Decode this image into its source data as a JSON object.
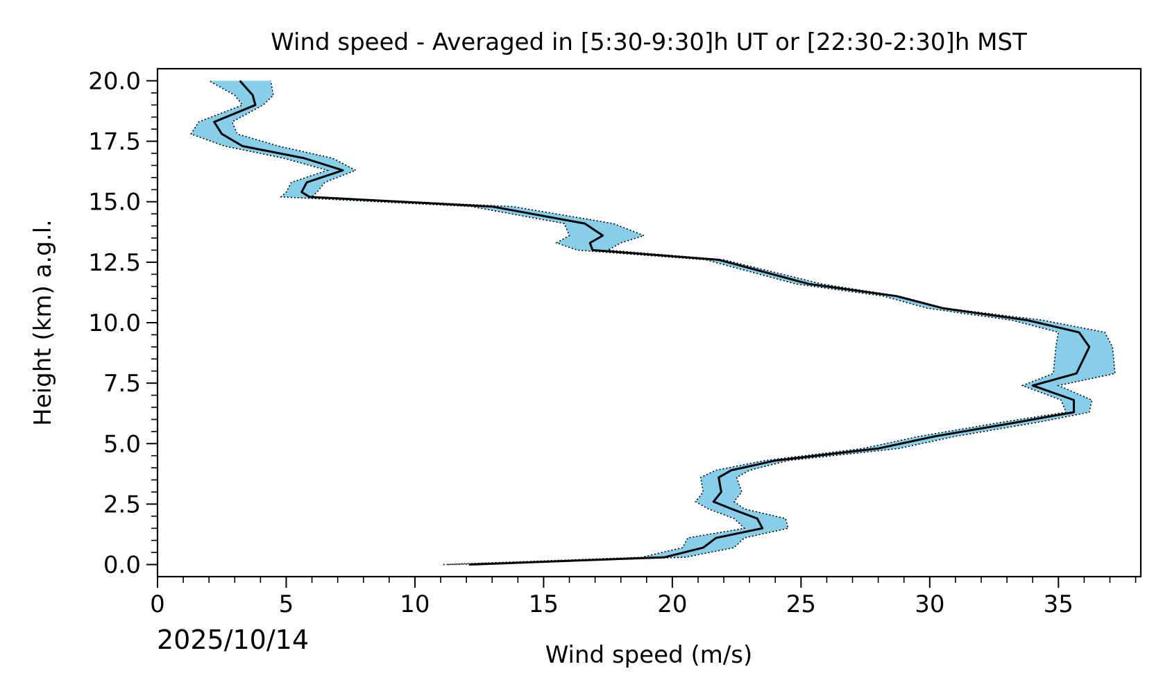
{
  "chart_data": {
    "type": "line",
    "title": "Wind speed - Averaged in [5:30-9:30]h UT or [22:30-2:30]h MST",
    "xlabel": "Wind speed (m/s)",
    "ylabel": "Height (km) a.g.l.",
    "xlim": [
      0,
      38.2
    ],
    "ylim": [
      -0.5,
      20.5
    ],
    "x_ticks": [
      0,
      5,
      10,
      15,
      20,
      25,
      30,
      35
    ],
    "x_tick_labels": [
      "0",
      "5",
      "10",
      "15",
      "20",
      "25",
      "30",
      "35"
    ],
    "y_ticks": [
      0,
      2.5,
      5,
      7.5,
      10,
      12.5,
      15,
      17.5,
      20
    ],
    "y_tick_labels": [
      "0.0",
      "2.5",
      "5.0",
      "7.5",
      "10.0",
      "12.5",
      "15.0",
      "17.5",
      "20.0"
    ],
    "grid": false,
    "date": "2025/10/14",
    "line_color": "#000000",
    "band_color": "#87ceeb",
    "series": [
      {
        "name": "mean",
        "points": [
          [
            12.1,
            0.0
          ],
          [
            19.7,
            0.3
          ],
          [
            21.2,
            0.7
          ],
          [
            21.7,
            1.1
          ],
          [
            23.5,
            1.5
          ],
          [
            23.3,
            1.9
          ],
          [
            22.3,
            2.3
          ],
          [
            21.6,
            2.6
          ],
          [
            21.9,
            3.0
          ],
          [
            21.8,
            3.6
          ],
          [
            22.3,
            3.9
          ],
          [
            24.0,
            4.3
          ],
          [
            28.0,
            4.8
          ],
          [
            30.2,
            5.3
          ],
          [
            33.5,
            5.9
          ],
          [
            35.6,
            6.3
          ],
          [
            35.6,
            6.8
          ],
          [
            34.0,
            7.4
          ],
          [
            35.7,
            7.9
          ],
          [
            36.2,
            9.0
          ],
          [
            35.8,
            9.6
          ],
          [
            33.8,
            10.1
          ],
          [
            30.5,
            10.6
          ],
          [
            28.7,
            11.1
          ],
          [
            25.3,
            11.6
          ],
          [
            21.8,
            12.6
          ],
          [
            16.9,
            13.0
          ],
          [
            16.8,
            13.3
          ],
          [
            17.3,
            13.6
          ],
          [
            16.6,
            14.1
          ],
          [
            13.0,
            14.8
          ],
          [
            5.9,
            15.2
          ],
          [
            5.6,
            15.4
          ],
          [
            5.8,
            15.8
          ],
          [
            7.2,
            16.3
          ],
          [
            5.7,
            16.8
          ],
          [
            3.3,
            17.3
          ],
          [
            2.5,
            17.8
          ],
          [
            2.2,
            18.3
          ],
          [
            3.8,
            19.0
          ],
          [
            3.7,
            19.4
          ],
          [
            3.2,
            20.0
          ]
        ]
      },
      {
        "name": "upper",
        "points": [
          [
            11.3,
            0.0
          ],
          [
            20.5,
            0.3
          ],
          [
            22.4,
            0.7
          ],
          [
            22.8,
            1.1
          ],
          [
            24.5,
            1.5
          ],
          [
            24.4,
            1.9
          ],
          [
            22.8,
            2.3
          ],
          [
            22.4,
            2.6
          ],
          [
            22.7,
            3.0
          ],
          [
            22.5,
            3.6
          ],
          [
            23.0,
            3.9
          ],
          [
            24.5,
            4.3
          ],
          [
            28.8,
            4.8
          ],
          [
            31.0,
            5.3
          ],
          [
            34.3,
            5.9
          ],
          [
            36.2,
            6.3
          ],
          [
            36.3,
            6.8
          ],
          [
            35.0,
            7.4
          ],
          [
            37.2,
            7.9
          ],
          [
            37.1,
            9.0
          ],
          [
            36.8,
            9.6
          ],
          [
            34.4,
            10.1
          ],
          [
            30.6,
            10.6
          ],
          [
            28.8,
            11.1
          ],
          [
            25.8,
            11.6
          ],
          [
            22.0,
            12.6
          ],
          [
            17.5,
            13.0
          ],
          [
            18.0,
            13.3
          ],
          [
            18.9,
            13.6
          ],
          [
            17.7,
            14.1
          ],
          [
            13.8,
            14.8
          ],
          [
            6.0,
            15.2
          ],
          [
            6.2,
            15.4
          ],
          [
            6.5,
            15.8
          ],
          [
            7.7,
            16.3
          ],
          [
            6.8,
            16.8
          ],
          [
            4.7,
            17.3
          ],
          [
            3.1,
            17.8
          ],
          [
            2.9,
            18.3
          ],
          [
            4.1,
            19.0
          ],
          [
            4.5,
            19.4
          ],
          [
            4.4,
            20.0
          ]
        ]
      },
      {
        "name": "lower",
        "points": [
          [
            11.1,
            0.0
          ],
          [
            18.8,
            0.3
          ],
          [
            20.4,
            0.7
          ],
          [
            20.6,
            1.1
          ],
          [
            22.8,
            1.5
          ],
          [
            22.4,
            1.9
          ],
          [
            21.4,
            2.3
          ],
          [
            20.9,
            2.6
          ],
          [
            21.2,
            3.0
          ],
          [
            21.1,
            3.6
          ],
          [
            21.7,
            3.9
          ],
          [
            23.6,
            4.3
          ],
          [
            27.4,
            4.8
          ],
          [
            29.6,
            5.3
          ],
          [
            32.9,
            5.9
          ],
          [
            35.3,
            6.3
          ],
          [
            35.1,
            6.8
          ],
          [
            33.6,
            7.4
          ],
          [
            34.8,
            7.9
          ],
          [
            34.9,
            9.0
          ],
          [
            35.0,
            9.6
          ],
          [
            33.2,
            10.1
          ],
          [
            29.9,
            10.6
          ],
          [
            28.2,
            11.1
          ],
          [
            24.8,
            11.6
          ],
          [
            21.3,
            12.6
          ],
          [
            16.3,
            13.0
          ],
          [
            15.5,
            13.3
          ],
          [
            16.0,
            13.6
          ],
          [
            15.8,
            14.1
          ],
          [
            12.2,
            14.8
          ],
          [
            4.8,
            15.2
          ],
          [
            5.0,
            15.4
          ],
          [
            5.2,
            15.8
          ],
          [
            6.6,
            16.3
          ],
          [
            4.9,
            16.8
          ],
          [
            2.6,
            17.3
          ],
          [
            1.3,
            17.8
          ],
          [
            1.6,
            18.3
          ],
          [
            3.3,
            19.0
          ],
          [
            3.0,
            19.4
          ],
          [
            2.0,
            20.0
          ]
        ]
      }
    ]
  }
}
